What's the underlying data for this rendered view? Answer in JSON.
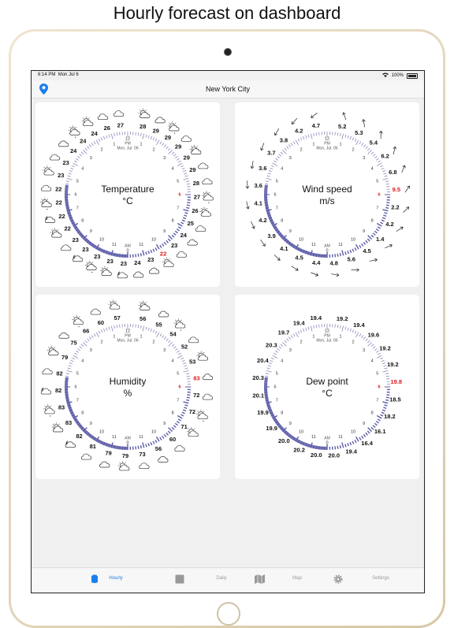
{
  "caption": "Hourly forecast on dashboard",
  "status": {
    "time": "6:14 PM",
    "date": "Mon Jul 6",
    "battery": "100%"
  },
  "location": "New York City",
  "colors": {
    "accent": "#1a7ff0",
    "ring": "#5c5ca8",
    "current": "#e0191c"
  },
  "dial": {
    "noon": "12",
    "pm": "PM",
    "am": "AM",
    "midnight": "0",
    "date": "Mon, Jul. 06",
    "pm_hours": [
      "1",
      "2",
      "3",
      "4",
      "5",
      "6",
      "7",
      "8",
      "9",
      "10",
      "11"
    ],
    "am_hours": [
      "11",
      "10",
      "9",
      "8",
      "7",
      "6",
      "5",
      "4",
      "3",
      "2",
      "1"
    ],
    "current_hour_label": "6"
  },
  "cards": [
    {
      "name": "temperature",
      "title": "Temperature",
      "unit": "°C",
      "current_value": "22",
      "values": [
        "28",
        "29",
        "29",
        "29",
        "29",
        "29",
        "28",
        "27",
        "26",
        "25",
        "24",
        "23",
        "22",
        "23",
        "24",
        "23",
        "23",
        "23",
        "23",
        "23",
        "22",
        "22",
        "22",
        "22",
        "23",
        "23",
        "24",
        "24",
        "24",
        "26",
        "27"
      ],
      "icons": "weather"
    },
    {
      "name": "wind-speed",
      "title": "Wind speed",
      "unit": "m/s",
      "current_value": "9.5",
      "values": [
        "5.2",
        "5.3",
        "5.4",
        "6.2",
        "6.8",
        "9.5",
        "2.2",
        "4.2",
        "1.4",
        "4.5",
        "5.6",
        "4.8",
        "4.4",
        "4.5",
        "4.1",
        "3.9",
        "4.2",
        "4.1",
        "3.6",
        "3.6",
        "3.7",
        "3.8",
        "4.2",
        "4.7"
      ],
      "icons": "arrows"
    },
    {
      "name": "humidity",
      "title": "Humidity",
      "unit": "%",
      "current_value": "83",
      "values": [
        "56",
        "55",
        "54",
        "52",
        "53",
        "83",
        "72",
        "72",
        "71",
        "60",
        "56",
        "73",
        "79",
        "79",
        "81",
        "82",
        "83",
        "83",
        "82",
        "82",
        "79",
        "75",
        "66",
        "60",
        "57"
      ],
      "icons": "weather"
    },
    {
      "name": "dew-point",
      "title": "Dew point",
      "unit": "°C",
      "current_value": "19.8",
      "values": [
        "19.2",
        "19.4",
        "19.6",
        "19.2",
        "19.2",
        "19.8",
        "18.5",
        "18.2",
        "16.1",
        "16.4",
        "19.4",
        "20.0",
        "20.0",
        "20.2",
        "20.0",
        "19.9",
        "19.9",
        "20.1",
        "20.3",
        "20.4",
        "20.3",
        "19.7",
        "19.4",
        "19.4"
      ],
      "icons": "none"
    }
  ],
  "tabs": [
    {
      "label": "Hourly",
      "icon": "hourly-icon",
      "active": true
    },
    {
      "label": "Daily",
      "icon": "daily-icon",
      "active": false
    },
    {
      "label": "Map",
      "icon": "map-icon",
      "active": false
    },
    {
      "label": "Settings",
      "icon": "gear-icon",
      "active": false
    }
  ]
}
